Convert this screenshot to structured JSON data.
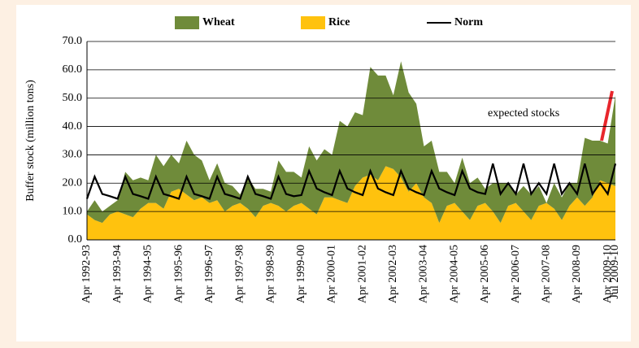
{
  "chart_data": {
    "type": "area",
    "stacked": true,
    "ylabel": "Buffer stock (million tons)",
    "annotation": "expected stocks",
    "annotation_color": "#e8262c",
    "categories": [
      "Apr 1992-93",
      null,
      null,
      null,
      "Apr 1993-94",
      null,
      null,
      null,
      "Apr 1994-95",
      null,
      null,
      null,
      "Apr 1995-96",
      null,
      null,
      null,
      "Apr 1996-97",
      null,
      null,
      null,
      "Apr 1997-98",
      null,
      null,
      null,
      "Apr 1998-99",
      null,
      null,
      null,
      "Apr 1999-00",
      null,
      null,
      null,
      "Apr 2000-01",
      null,
      null,
      null,
      "Apr 2001-02",
      null,
      null,
      null,
      "Apr 2002-03",
      null,
      null,
      null,
      "Apr 2003-04",
      null,
      null,
      null,
      "Apr 2004-05",
      null,
      null,
      null,
      "Apr 2005-06",
      null,
      null,
      null,
      "Apr 2006-07",
      null,
      null,
      null,
      "Apr 2007-08",
      null,
      null,
      null,
      "Apr 2008-09",
      null,
      null,
      null,
      "Apr 2009-10",
      "Jul 2009-10"
    ],
    "series": [
      {
        "name": "Wheat",
        "type": "area",
        "color": "#6f8b3a",
        "values": [
          1,
          7,
          4,
          3,
          4,
          15,
          13,
          11,
          8,
          17,
          15,
          13,
          9,
          19,
          16,
          13,
          8,
          13,
          10,
          7,
          3,
          11,
          10,
          6,
          4,
          16,
          14,
          12,
          9,
          22,
          19,
          17,
          15,
          28,
          27,
          26,
          22,
          38,
          37,
          32,
          26,
          41,
          35,
          28,
          18,
          22,
          18,
          12,
          7,
          19,
          13,
          10,
          5,
          10,
          14,
          8,
          3,
          9,
          9,
          7,
          0,
          9,
          8,
          8,
          5,
          24,
          20,
          14,
          14,
          32
        ]
      },
      {
        "name": "Rice",
        "type": "area",
        "color": "#ffc20e",
        "values": [
          9,
          7,
          6,
          9,
          10,
          9,
          8,
          11,
          13,
          13,
          11,
          17,
          18,
          16,
          14,
          15,
          13,
          14,
          10,
          12,
          13,
          11,
          8,
          12,
          13,
          12,
          10,
          12,
          13,
          11,
          9,
          15,
          15,
          14,
          13,
          19,
          22,
          23,
          21,
          26,
          25,
          22,
          17,
          20,
          15,
          13,
          6,
          12,
          13,
          10,
          7,
          12,
          13,
          10,
          6,
          12,
          13,
          10,
          7,
          12,
          13,
          11,
          7,
          12,
          15,
          12,
          15,
          21,
          20,
          19
        ]
      },
      {
        "name": "Norm",
        "type": "line",
        "color": "#000000",
        "values": [
          14.5,
          22.3,
          16.2,
          15.4,
          14.5,
          22.3,
          16.2,
          15.4,
          14.5,
          22.3,
          16.2,
          15.4,
          14.5,
          22.3,
          16.2,
          15.4,
          14.5,
          22.3,
          16.2,
          15.4,
          14.5,
          22.3,
          16.2,
          15.4,
          14.5,
          22.3,
          16.2,
          15.4,
          15.8,
          24.3,
          18.1,
          16.8,
          15.8,
          24.3,
          18.1,
          16.8,
          15.8,
          24.3,
          18.1,
          16.8,
          15.8,
          24.3,
          18.1,
          16.8,
          15.8,
          24.3,
          18.1,
          16.8,
          15.8,
          24.3,
          18.1,
          16.8,
          16.2,
          26.9,
          16.2,
          20.0,
          16.2,
          26.9,
          16.2,
          20.0,
          16.2,
          26.9,
          16.2,
          20.0,
          16.2,
          26.9,
          16.2,
          20.0,
          16.2,
          26.9
        ]
      }
    ],
    "ylim": [
      0,
      70
    ],
    "yticks": [
      {
        "value": 0,
        "label": "0.0"
      },
      {
        "value": 10,
        "label": "10.0"
      },
      {
        "value": 20,
        "label": "20.0"
      },
      {
        "value": 30,
        "label": "30.0"
      },
      {
        "value": 40,
        "label": "40.0"
      },
      {
        "value": 50,
        "label": "50.0"
      },
      {
        "value": 60,
        "label": "60.0"
      },
      {
        "value": 70,
        "label": "70.0"
      }
    ],
    "grid": true,
    "legend": "top"
  }
}
